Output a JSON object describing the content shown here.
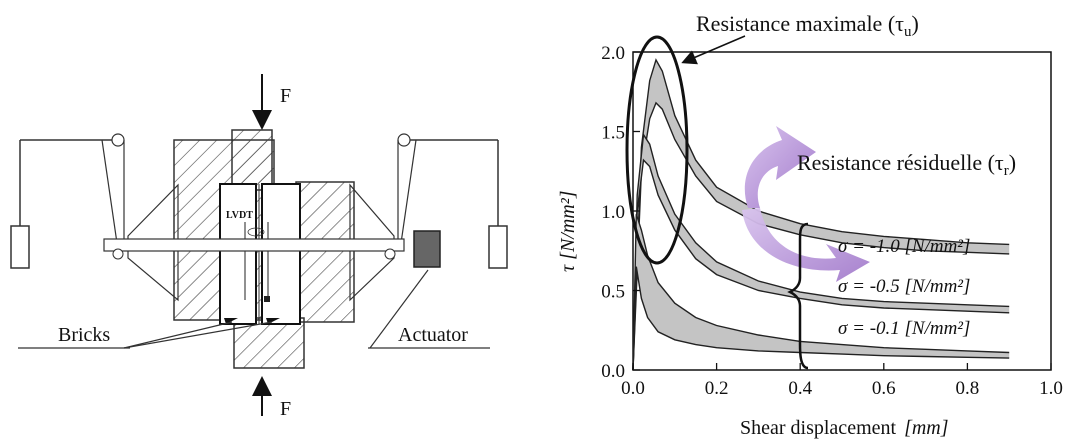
{
  "apparatus": {
    "force_top": "F",
    "force_bottom": "F",
    "lvdt": "LVDT",
    "bricks": "Bricks",
    "actuator": "Actuator"
  },
  "chart_data": {
    "type": "area",
    "xlabel": "Shear displacement",
    "xlabel_unit": "[mm]",
    "ylabel": "τ [N/mm²]",
    "xlim": [
      0.0,
      1.0
    ],
    "ylim": [
      0.0,
      2.0
    ],
    "xticks": [
      "0.0",
      "0.2",
      "0.4",
      "0.6",
      "0.8",
      "1.0"
    ],
    "yticks": [
      "0.0",
      "0.5",
      "1.0",
      "1.5",
      "2.0"
    ],
    "grid": false,
    "annotations": {
      "peak": {
        "text": "Resistance maximale (τ",
        "sub": "u",
        "close": ")"
      },
      "residual": {
        "text": "Resistance résiduelle (τ",
        "sub": "r",
        "close": ")"
      }
    },
    "series": [
      {
        "label": "σ = -1.0  [N/mm²]",
        "upper": {
          "x": [
            0.0,
            0.02,
            0.04,
            0.055,
            0.07,
            0.1,
            0.15,
            0.2,
            0.3,
            0.4,
            0.5,
            0.6,
            0.7,
            0.8,
            0.9
          ],
          "y": [
            0.0,
            1.4,
            1.82,
            1.95,
            1.88,
            1.6,
            1.32,
            1.15,
            1.0,
            0.92,
            0.87,
            0.84,
            0.82,
            0.8,
            0.79
          ]
        },
        "lower": {
          "x": [
            0.0,
            0.02,
            0.04,
            0.055,
            0.07,
            0.1,
            0.15,
            0.2,
            0.3,
            0.4,
            0.5,
            0.6,
            0.7,
            0.8,
            0.9
          ],
          "y": [
            0.0,
            1.25,
            1.58,
            1.68,
            1.64,
            1.45,
            1.22,
            1.06,
            0.92,
            0.85,
            0.8,
            0.77,
            0.75,
            0.74,
            0.73
          ]
        }
      },
      {
        "label": "σ = -0.5  [N/mm²]",
        "upper": {
          "x": [
            0.0,
            0.01,
            0.025,
            0.04,
            0.06,
            0.1,
            0.15,
            0.2,
            0.3,
            0.4,
            0.5,
            0.6,
            0.7,
            0.8,
            0.9
          ],
          "y": [
            0.0,
            1.1,
            1.48,
            1.42,
            1.22,
            0.98,
            0.8,
            0.68,
            0.56,
            0.49,
            0.45,
            0.43,
            0.42,
            0.41,
            0.4
          ]
        },
        "lower": {
          "x": [
            0.0,
            0.01,
            0.025,
            0.04,
            0.06,
            0.1,
            0.15,
            0.2,
            0.3,
            0.4,
            0.5,
            0.6,
            0.7,
            0.8,
            0.9
          ],
          "y": [
            0.0,
            1.0,
            1.32,
            1.28,
            1.1,
            0.88,
            0.7,
            0.6,
            0.5,
            0.45,
            0.41,
            0.39,
            0.38,
            0.37,
            0.36
          ]
        }
      },
      {
        "label": "σ = -0.1  [N/mm²]",
        "upper": {
          "x": [
            0.0,
            0.008,
            0.02,
            0.035,
            0.06,
            0.1,
            0.15,
            0.2,
            0.3,
            0.4,
            0.5,
            0.6,
            0.7,
            0.8,
            0.9
          ],
          "y": [
            0.0,
            0.98,
            0.88,
            0.72,
            0.55,
            0.42,
            0.33,
            0.28,
            0.22,
            0.18,
            0.16,
            0.14,
            0.13,
            0.12,
            0.11
          ]
        },
        "lower": {
          "x": [
            0.0,
            0.008,
            0.02,
            0.035,
            0.06,
            0.1,
            0.15,
            0.2,
            0.3,
            0.4,
            0.5,
            0.6,
            0.7,
            0.8,
            0.9
          ],
          "y": [
            0.0,
            0.65,
            0.45,
            0.33,
            0.24,
            0.19,
            0.16,
            0.14,
            0.12,
            0.11,
            0.1,
            0.09,
            0.085,
            0.08,
            0.075
          ]
        }
      }
    ],
    "colors": {
      "band": "#c4c4c4",
      "arrow": "#b48fd6"
    }
  }
}
